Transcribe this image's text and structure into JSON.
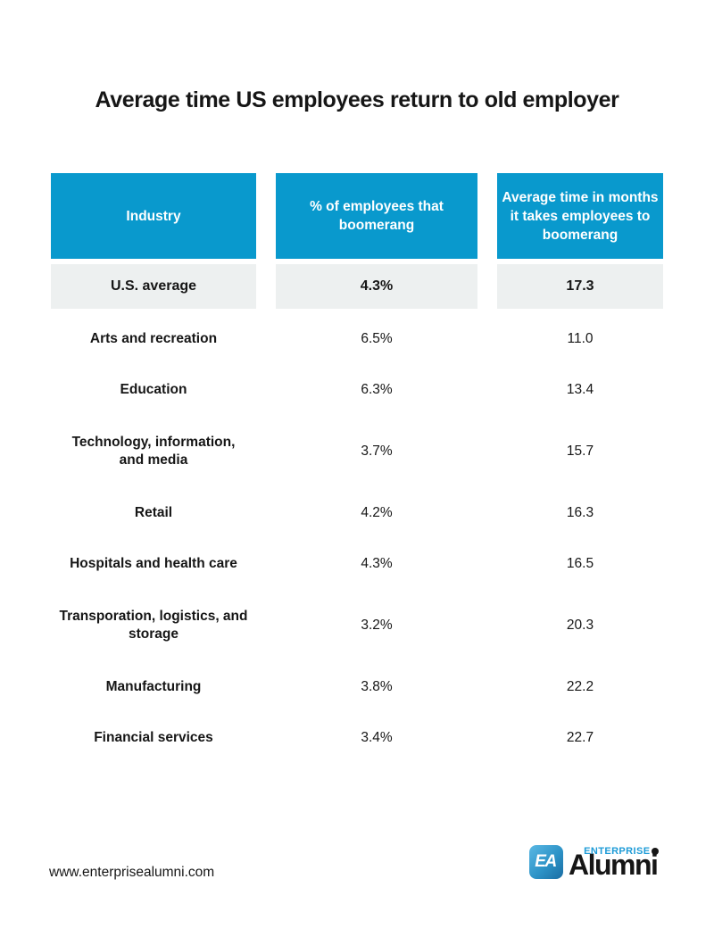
{
  "title": "Average time US employees return to old employer",
  "colors": {
    "header_blue": "#0999cd",
    "row_gray": "#edf0f0",
    "logo_blue": "#1d9bd7",
    "text": "#161616"
  },
  "table": {
    "columns": [
      {
        "label": "Industry"
      },
      {
        "label": "% of employees that boomerang"
      },
      {
        "label": "Average time in months it takes employees to boomerang"
      }
    ],
    "us_average": {
      "industry": "U.S. average",
      "pct": "4.3%",
      "months": "17.3"
    },
    "rows": [
      {
        "industry": "Arts and recreation",
        "pct": "6.5%",
        "months": "11.0",
        "two_line": false
      },
      {
        "industry": "Education",
        "pct": "6.3%",
        "months": "13.4",
        "two_line": false
      },
      {
        "industry": "Technology, information, and media",
        "pct": "3.7%",
        "months": "15.7",
        "two_line": true
      },
      {
        "industry": "Retail",
        "pct": "4.2%",
        "months": "16.3",
        "two_line": false
      },
      {
        "industry": "Hospitals and health care",
        "pct": "4.3%",
        "months": "16.5",
        "two_line": false
      },
      {
        "industry": "Transporation, logistics, and storage",
        "pct": "3.2%",
        "months": "20.3",
        "two_line": true
      },
      {
        "industry": "Manufacturing",
        "pct": "3.8%",
        "months": "22.2",
        "two_line": false
      },
      {
        "industry": "Financial services",
        "pct": "3.4%",
        "months": "22.7",
        "two_line": false
      }
    ]
  },
  "footer": {
    "website": "www.enterprisealumni.com",
    "logo": {
      "monogram": "EA",
      "enterprise": "ENTERPRISE",
      "alumni": "Alumni"
    }
  },
  "chart_data": {
    "type": "table",
    "title": "Average time US employees return to old employer",
    "columns": [
      "Industry",
      "% of employees that boomerang",
      "Average time in months it takes employees to boomerang"
    ],
    "rows": [
      [
        "U.S. average",
        4.3,
        17.3
      ],
      [
        "Arts and recreation",
        6.5,
        11.0
      ],
      [
        "Education",
        6.3,
        13.4
      ],
      [
        "Technology, information, and media",
        3.7,
        15.7
      ],
      [
        "Retail",
        4.2,
        16.3
      ],
      [
        "Hospitals and health care",
        4.3,
        16.5
      ],
      [
        "Transporation, logistics, and storage",
        3.2,
        20.3
      ],
      [
        "Manufacturing",
        3.8,
        22.2
      ],
      [
        "Financial services",
        3.4,
        22.7
      ]
    ],
    "layout_hints": {
      "highlight_row": "U.S. average",
      "pct_unit": "%",
      "months_unit": "months",
      "header_color": "#0999cd",
      "highlight_color": "#edf0f0"
    }
  }
}
